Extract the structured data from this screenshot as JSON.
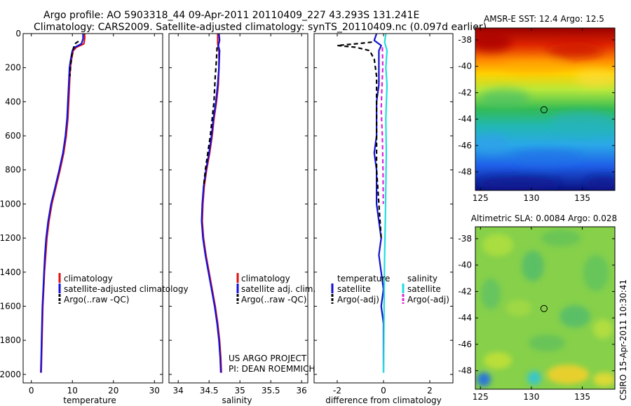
{
  "header": {
    "line1": "Argo profile: AO 5903318_44 09-Apr-2011 20110409_227 43.293S 131.241E",
    "line2": "Climatology: CARS2009. Satellite-adjusted climatology: synTS_20110409.nc (0.097d earlier)"
  },
  "credit": {
    "project": "US ARGO PROJECT",
    "pi": "PI: DEAN ROEMMICH",
    "stamp": "CSIRO 15-Apr-2011 10:30:41"
  },
  "colors": {
    "climatology": "#dd1111",
    "satellite": "#1111dd",
    "argo": "#000000",
    "salinity_satellite": "#22dddd",
    "salinity_argo": "#dd22dd",
    "temperature_satellite": "#1111cc",
    "temperature_argo": "#000000"
  },
  "chart_data": [
    {
      "id": "temperature",
      "type": "line",
      "xlabel": "temperature",
      "ylabel": "",
      "xlim": [
        -2,
        32
      ],
      "ylim": [
        2050,
        0
      ],
      "xticks": [
        0,
        10,
        20,
        30
      ],
      "yticks": [
        0,
        200,
        400,
        600,
        800,
        1000,
        1200,
        1400,
        1600,
        1800,
        2000
      ],
      "legend": {
        "position": "right-middle",
        "entries": [
          "climatology",
          "satellite-adjusted climatology",
          "Argo(..raw -QC)"
        ]
      },
      "series": [
        {
          "name": "climatology",
          "style": "solid",
          "color_key": "climatology",
          "points": [
            [
              13.0,
              0
            ],
            [
              13.0,
              30
            ],
            [
              12.8,
              60
            ],
            [
              11.0,
              80
            ],
            [
              10.2,
              100
            ],
            [
              9.8,
              150
            ],
            [
              9.5,
              200
            ],
            [
              9.3,
              300
            ],
            [
              9.1,
              400
            ],
            [
              8.9,
              500
            ],
            [
              8.5,
              600
            ],
            [
              7.9,
              700
            ],
            [
              7.0,
              800
            ],
            [
              6.0,
              900
            ],
            [
              5.0,
              1000
            ],
            [
              4.3,
              1100
            ],
            [
              3.8,
              1200
            ],
            [
              3.5,
              1300
            ],
            [
              3.2,
              1400
            ],
            [
              3.0,
              1500
            ],
            [
              2.8,
              1600
            ],
            [
              2.7,
              1700
            ],
            [
              2.6,
              1800
            ],
            [
              2.5,
              1900
            ],
            [
              2.4,
              1990
            ]
          ]
        },
        {
          "name": "satellite-adjusted climatology",
          "style": "solid",
          "color_key": "satellite",
          "points": [
            [
              12.6,
              0
            ],
            [
              12.6,
              30
            ],
            [
              12.2,
              60
            ],
            [
              10.6,
              80
            ],
            [
              10.0,
              100
            ],
            [
              9.6,
              150
            ],
            [
              9.3,
              200
            ],
            [
              9.1,
              300
            ],
            [
              8.9,
              400
            ],
            [
              8.7,
              500
            ],
            [
              8.3,
              600
            ],
            [
              7.7,
              700
            ],
            [
              6.8,
              800
            ],
            [
              5.8,
              900
            ],
            [
              4.8,
              1000
            ],
            [
              4.1,
              1100
            ],
            [
              3.6,
              1200
            ],
            [
              3.3,
              1300
            ],
            [
              3.1,
              1400
            ],
            [
              2.9,
              1500
            ],
            [
              2.7,
              1600
            ],
            [
              2.6,
              1700
            ],
            [
              2.5,
              1800
            ],
            [
              2.4,
              1900
            ],
            [
              2.3,
              1990
            ]
          ]
        },
        {
          "name": "Argo(..raw -QC)",
          "style": "dashed",
          "color_key": "argo",
          "points": [
            [
              11.5,
              45
            ],
            [
              10.6,
              60
            ],
            [
              10.2,
              90
            ],
            [
              9.9,
              120
            ],
            [
              9.6,
              180
            ],
            [
              9.4,
              250
            ]
          ]
        }
      ]
    },
    {
      "id": "salinity",
      "type": "line",
      "xlabel": "salinity",
      "ylabel": "",
      "xlim": [
        33.85,
        36.1
      ],
      "ylim": [
        2050,
        0
      ],
      "xticks": [
        34,
        34.5,
        35,
        35.5,
        36
      ],
      "yticks": [
        0,
        200,
        400,
        600,
        800,
        1000,
        1200,
        1400,
        1600,
        1800,
        2000
      ],
      "legend": {
        "position": "right-middle",
        "entries": [
          "climatology",
          "satellite adj. clim.",
          "Argo(..raw -QC)"
        ]
      },
      "series": [
        {
          "name": "climatology",
          "style": "solid",
          "color_key": "climatology",
          "points": [
            [
              34.64,
              0
            ],
            [
              34.64,
              60
            ],
            [
              34.66,
              100
            ],
            [
              34.66,
              200
            ],
            [
              34.65,
              300
            ],
            [
              34.62,
              400
            ],
            [
              34.58,
              500
            ],
            [
              34.55,
              600
            ],
            [
              34.51,
              700
            ],
            [
              34.46,
              800
            ],
            [
              34.42,
              900
            ],
            [
              34.4,
              1000
            ],
            [
              34.39,
              1100
            ],
            [
              34.41,
              1200
            ],
            [
              34.45,
              1300
            ],
            [
              34.5,
              1400
            ],
            [
              34.55,
              1500
            ],
            [
              34.6,
              1600
            ],
            [
              34.64,
              1700
            ],
            [
              34.67,
              1800
            ],
            [
              34.69,
              1900
            ],
            [
              34.7,
              1990
            ]
          ]
        },
        {
          "name": "satellite adj. clim.",
          "style": "solid",
          "color_key": "satellite",
          "points": [
            [
              34.66,
              0
            ],
            [
              34.67,
              40
            ],
            [
              34.65,
              70
            ],
            [
              34.67,
              100
            ],
            [
              34.66,
              200
            ],
            [
              34.64,
              300
            ],
            [
              34.61,
              400
            ],
            [
              34.57,
              500
            ],
            [
              34.54,
              600
            ],
            [
              34.5,
              700
            ],
            [
              34.45,
              800
            ],
            [
              34.41,
              900
            ],
            [
              34.39,
              1000
            ],
            [
              34.38,
              1100
            ],
            [
              34.4,
              1200
            ],
            [
              34.44,
              1300
            ],
            [
              34.49,
              1400
            ],
            [
              34.54,
              1500
            ],
            [
              34.59,
              1600
            ],
            [
              34.63,
              1700
            ],
            [
              34.66,
              1800
            ],
            [
              34.68,
              1900
            ],
            [
              34.69,
              1990
            ]
          ]
        },
        {
          "name": "Argo(..raw -QC)",
          "style": "dashed",
          "color_key": "argo",
          "points": [
            [
              34.63,
              80
            ],
            [
              34.62,
              150
            ],
            [
              34.6,
              250
            ],
            [
              34.58,
              400
            ],
            [
              34.55,
              500
            ],
            [
              34.52,
              600
            ],
            [
              34.48,
              700
            ],
            [
              34.44,
              800
            ],
            [
              34.41,
              900
            ]
          ]
        }
      ]
    },
    {
      "id": "difference",
      "type": "line",
      "xlabel": "difference from climatology",
      "ylabel": "",
      "xlim": [
        -3.0,
        3.0
      ],
      "ylim": [
        2050,
        0
      ],
      "xticks": [
        -2,
        0,
        2
      ],
      "yticks": [
        0,
        200,
        400,
        600,
        800,
        1000,
        1200,
        1400,
        1600,
        1800,
        2000
      ],
      "legend": {
        "position": "middle",
        "columns": [
          {
            "title": "temperature",
            "entries": [
              "satellite",
              "Argo(-adj)"
            ]
          },
          {
            "title": "salinity",
            "entries": [
              "satellite",
              "Argo(-adj)"
            ]
          }
        ]
      },
      "series": [
        {
          "name": "temperature satellite",
          "style": "solid",
          "color_key": "temperature_satellite",
          "points": [
            [
              -0.3,
              0
            ],
            [
              -0.4,
              40
            ],
            [
              -0.1,
              70
            ],
            [
              -0.2,
              100
            ],
            [
              -0.2,
              200
            ],
            [
              -0.2,
              300
            ],
            [
              -0.3,
              400
            ],
            [
              -0.3,
              500
            ],
            [
              -0.3,
              600
            ],
            [
              -0.4,
              700
            ],
            [
              -0.3,
              800
            ],
            [
              -0.3,
              900
            ],
            [
              -0.3,
              1000
            ],
            [
              -0.2,
              1100
            ],
            [
              -0.1,
              1200
            ],
            [
              -0.2,
              1300
            ],
            [
              -0.1,
              1400
            ],
            [
              0.0,
              1500
            ],
            [
              -0.1,
              1600
            ],
            [
              0.0,
              1700
            ],
            [
              0.0,
              1800
            ],
            [
              0.0,
              1900
            ],
            [
              0.0,
              1990
            ]
          ]
        },
        {
          "name": "temperature Argo(-adj)",
          "style": "dashed",
          "color_key": "temperature_argo",
          "points": [
            [
              -0.5,
              50
            ],
            [
              -1.2,
              60
            ],
            [
              -2.0,
              70
            ],
            [
              -1.2,
              80
            ],
            [
              -0.6,
              100
            ],
            [
              -0.4,
              150
            ],
            [
              -0.3,
              250
            ],
            [
              -0.3,
              400
            ],
            [
              -0.3,
              600
            ],
            [
              -0.3,
              800
            ],
            [
              -0.2,
              1000
            ],
            [
              -0.1,
              1200
            ]
          ]
        },
        {
          "name": "salinity satellite",
          "style": "solid",
          "color_key": "salinity_satellite",
          "points": [
            [
              0.1,
              0
            ],
            [
              0.05,
              50
            ],
            [
              0.15,
              100
            ],
            [
              0.1,
              200
            ],
            [
              0.15,
              300
            ],
            [
              0.1,
              500
            ],
            [
              0.12,
              700
            ],
            [
              0.1,
              900
            ],
            [
              0.08,
              1100
            ],
            [
              0.05,
              1300
            ],
            [
              0.03,
              1500
            ],
            [
              0.02,
              1700
            ],
            [
              0.01,
              1900
            ],
            [
              0.0,
              1990
            ]
          ]
        },
        {
          "name": "salinity Argo(-adj)",
          "style": "dashed",
          "color_key": "salinity_argo",
          "points": [
            [
              -0.05,
              80
            ],
            [
              -0.03,
              200
            ],
            [
              -0.08,
              350
            ],
            [
              -0.1,
              450
            ],
            [
              -0.05,
              600
            ],
            [
              -0.02,
              800
            ],
            [
              -0.01,
              1000
            ]
          ]
        }
      ]
    },
    {
      "id": "sst-map",
      "type": "heatmap",
      "title": "AMSR-E SST: 12.4 Argo: 12.5",
      "xlim": [
        124.5,
        138.2
      ],
      "ylim": [
        -49.4,
        -37.1
      ],
      "xticks": [
        125,
        130,
        135
      ],
      "yticks": [
        -38,
        -40,
        -42,
        -44,
        -46,
        -48
      ],
      "colormap": "jet",
      "marker": {
        "lon": 131.241,
        "lat": -43.293,
        "shape": "circle"
      }
    },
    {
      "id": "sla-map",
      "type": "heatmap",
      "title": "Altimetric SLA: 0.0084 Argo: 0.028",
      "xlim": [
        124.5,
        138.2
      ],
      "ylim": [
        -49.4,
        -37.1
      ],
      "xticks": [
        125,
        130,
        135
      ],
      "yticks": [
        -38,
        -40,
        -42,
        -44,
        -46,
        -48
      ],
      "colormap": "jet",
      "marker": {
        "lon": 131.241,
        "lat": -43.293,
        "shape": "circle"
      }
    }
  ]
}
